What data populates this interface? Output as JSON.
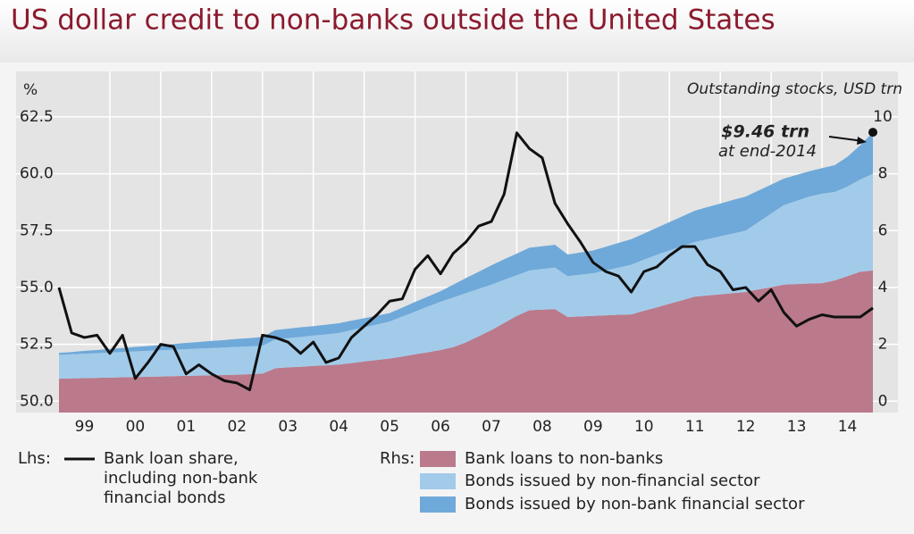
{
  "chart_data": {
    "type": "combo",
    "title": "US dollar credit to non-banks outside the United States",
    "ylabel": "%",
    "y2label": "Outstanding stocks, USD trn",
    "annotations": [
      "$9.46 trn",
      "at end-2014"
    ],
    "legend_groups": [
      "Lhs:",
      "Rhs:"
    ],
    "x": [
      1999,
      1999.25,
      1999.5,
      1999.75,
      2000,
      2000.25,
      2000.5,
      2000.75,
      2001,
      2001.25,
      2001.5,
      2001.75,
      2002,
      2002.25,
      2002.5,
      2002.75,
      2003,
      2003.25,
      2003.5,
      2003.75,
      2004,
      2004.25,
      2004.5,
      2004.75,
      2005,
      2005.25,
      2005.5,
      2005.75,
      2006,
      2006.25,
      2006.5,
      2006.75,
      2007,
      2007.25,
      2007.5,
      2007.75,
      2008,
      2008.25,
      2008.5,
      2008.75,
      2009,
      2009.25,
      2009.5,
      2009.75,
      2010,
      2010.25,
      2010.5,
      2010.75,
      2011,
      2011.25,
      2011.5,
      2011.75,
      2012,
      2012.25,
      2012.5,
      2012.75,
      2013,
      2013.25,
      2013.5,
      2013.75,
      2014,
      2014.25,
      2014.5,
      2014.75,
      2015
    ],
    "xlim": [
      1999,
      2015
    ],
    "xticks": [
      {
        "value": 1999.5,
        "label": "99"
      },
      {
        "value": 2000.5,
        "label": "00"
      },
      {
        "value": 2001.5,
        "label": "01"
      },
      {
        "value": 2002.5,
        "label": "02"
      },
      {
        "value": 2003.5,
        "label": "03"
      },
      {
        "value": 2004.5,
        "label": "04"
      },
      {
        "value": 2005.5,
        "label": "05"
      },
      {
        "value": 2006.5,
        "label": "06"
      },
      {
        "value": 2007.5,
        "label": "07"
      },
      {
        "value": 2008.5,
        "label": "08"
      },
      {
        "value": 2009.5,
        "label": "09"
      },
      {
        "value": 2010.5,
        "label": "10"
      },
      {
        "value": 2011.5,
        "label": "11"
      },
      {
        "value": 2012.5,
        "label": "12"
      },
      {
        "value": 2013.5,
        "label": "13"
      },
      {
        "value": 2014.5,
        "label": "14"
      }
    ],
    "ylim": [
      49.5,
      64.5
    ],
    "yticks": [
      62.5,
      {
        "value": 60,
        "label": "60.0"
      },
      57.5,
      {
        "value": 55,
        "label": "55.0"
      },
      52.5,
      {
        "value": 50,
        "label": "50.0"
      }
    ],
    "y2lim": [
      -0.4,
      11.6
    ],
    "y2ticks": [
      10,
      8,
      6,
      4,
      2,
      0
    ],
    "grid": true,
    "stacked": true,
    "series": [
      {
        "name": "Bank loan share, including non-bank financial bonds",
        "type": "line",
        "axis": "y",
        "color": "#111111",
        "values": [
          55.0,
          53.0,
          52.8,
          52.9,
          52.1,
          52.9,
          51.0,
          51.7,
          52.5,
          52.4,
          51.2,
          51.6,
          51.2,
          50.9,
          50.8,
          50.5,
          52.9,
          52.8,
          52.6,
          52.1,
          52.6,
          51.7,
          51.9,
          52.8,
          53.3,
          53.8,
          54.4,
          54.5,
          55.8,
          56.4,
          55.6,
          56.5,
          57.0,
          57.7,
          57.9,
          59.1,
          61.8,
          61.1,
          60.7,
          58.7,
          57.8,
          57.0,
          56.1,
          55.7,
          55.5,
          54.8,
          55.7,
          55.9,
          56.4,
          56.8,
          56.8,
          56.0,
          55.7,
          54.9,
          55.0,
          54.4,
          54.9,
          53.9,
          53.3,
          53.6,
          53.8,
          53.7,
          53.7,
          53.7,
          54.1
        ]
      },
      {
        "name": "Bank loans to non-banks",
        "type": "area",
        "axis": "y2",
        "color": "#ba7a8b",
        "values": [
          0.79,
          0.8,
          0.81,
          0.82,
          0.83,
          0.84,
          0.85,
          0.86,
          0.87,
          0.88,
          0.89,
          0.9,
          0.91,
          0.92,
          0.93,
          0.95,
          0.97,
          1.16,
          1.19,
          1.21,
          1.24,
          1.26,
          1.29,
          1.34,
          1.4,
          1.45,
          1.5,
          1.57,
          1.65,
          1.72,
          1.8,
          1.9,
          2.07,
          2.28,
          2.5,
          2.75,
          3.0,
          3.2,
          3.22,
          3.24,
          2.96,
          2.98,
          3.0,
          3.02,
          3.04,
          3.05,
          3.18,
          3.3,
          3.43,
          3.55,
          3.68,
          3.72,
          3.76,
          3.8,
          3.84,
          3.93,
          4.01,
          4.1,
          4.12,
          4.14,
          4.15,
          4.25,
          4.4,
          4.55,
          4.6
        ]
      },
      {
        "name": "Bonds issued by non-financial sector",
        "type": "area",
        "axis": "y2",
        "color": "#a2cbea",
        "values": [
          0.84,
          0.85,
          0.86,
          0.87,
          0.88,
          0.89,
          0.9,
          0.91,
          0.92,
          0.93,
          0.94,
          0.95,
          0.96,
          0.97,
          0.98,
          0.98,
          0.98,
          1.01,
          1.03,
          1.05,
          1.07,
          1.09,
          1.11,
          1.16,
          1.2,
          1.25,
          1.3,
          1.41,
          1.5,
          1.61,
          1.7,
          1.75,
          1.73,
          1.67,
          1.6,
          1.52,
          1.43,
          1.4,
          1.43,
          1.46,
          1.44,
          1.47,
          1.5,
          1.58,
          1.66,
          1.75,
          1.8,
          1.85,
          1.87,
          1.9,
          1.92,
          1.98,
          2.04,
          2.1,
          2.16,
          2.37,
          2.59,
          2.8,
          2.93,
          3.06,
          3.15,
          3.11,
          3.15,
          3.25,
          3.4
        ]
      },
      {
        "name": "Bonds issued by non-bank financial sector",
        "type": "area",
        "axis": "y2",
        "color": "#6fa9d9",
        "values": [
          0.07,
          0.08,
          0.1,
          0.11,
          0.13,
          0.14,
          0.16,
          0.17,
          0.19,
          0.2,
          0.22,
          0.23,
          0.25,
          0.26,
          0.28,
          0.29,
          0.31,
          0.33,
          0.33,
          0.34,
          0.33,
          0.34,
          0.34,
          0.33,
          0.32,
          0.31,
          0.3,
          0.31,
          0.34,
          0.35,
          0.37,
          0.45,
          0.53,
          0.6,
          0.68,
          0.72,
          0.76,
          0.8,
          0.8,
          0.8,
          0.76,
          0.78,
          0.8,
          0.83,
          0.87,
          0.9,
          0.92,
          0.95,
          1.0,
          1.05,
          1.1,
          1.13,
          1.15,
          1.18,
          1.2,
          1.11,
          1.02,
          0.93,
          0.91,
          0.89,
          0.9,
          0.94,
          1.05,
          1.2,
          1.46
        ]
      }
    ]
  }
}
